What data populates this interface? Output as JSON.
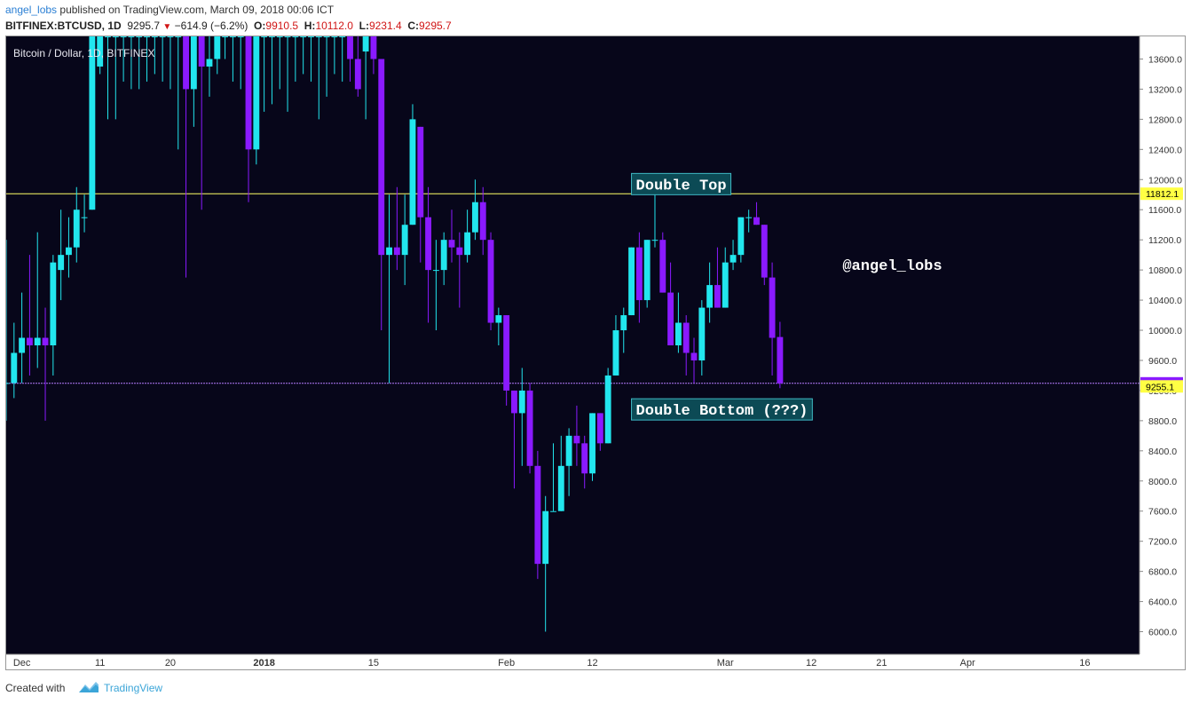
{
  "header": {
    "author": "angel_lobs",
    "published_text": " published on TradingView.com, March 09, 2018 00:06 ICT",
    "symbol": "BITFINEX:BTCUSD, 1D",
    "last_price": "9295.7",
    "change": "−614.9 (−6.2%)",
    "open_label": "O:",
    "open": "9910.5",
    "high_label": "H:",
    "high": "10112.0",
    "low_label": "L:",
    "low": "9231.4",
    "close_label": "C:",
    "close": "9295.7"
  },
  "footer": {
    "created_with": "Created with",
    "brand": "TradingView"
  },
  "colors": {
    "background": "#07061a",
    "bull": "#22e6ee",
    "bear": "#8a1aff",
    "resistance_line": "#ffff66",
    "support_line": "#b57bff",
    "label_bg": "#0c4a55",
    "label_border": "#3fb8c4"
  },
  "chart_data": {
    "type": "candlestick",
    "title": "Bitcoin / Dollar, 1D, BITFINEX",
    "y_ticks": [
      6000,
      6400,
      6800,
      7200,
      7600,
      8000,
      8400,
      8800,
      9200,
      9600,
      10000,
      10400,
      10800,
      11200,
      11600,
      12000,
      12400,
      12800,
      13200,
      13600
    ],
    "y_tick_labels": [
      "6000.0",
      "6400.0",
      "6800.0",
      "7200.0",
      "7600.0",
      "8000.0",
      "8400.0",
      "8800.0",
      "9200.0",
      "9600.0",
      "10000.0",
      "10400.0",
      "10800.0",
      "11200.0",
      "11600.0",
      "12000.0",
      "12400.0",
      "12800.0",
      "13200.0",
      "13600.0"
    ],
    "ylim": [
      5700,
      13900
    ],
    "x_ticks": [
      {
        "label": "Dec",
        "date": "2017-12-01"
      },
      {
        "label": "11",
        "date": "2017-12-11"
      },
      {
        "label": "20",
        "date": "2017-12-20"
      },
      {
        "label": "2018",
        "date": "2018-01-01"
      },
      {
        "label": "15",
        "date": "2018-01-15"
      },
      {
        "label": "Feb",
        "date": "2018-02-01"
      },
      {
        "label": "12",
        "date": "2018-02-12"
      },
      {
        "label": "Mar",
        "date": "2018-03-01"
      },
      {
        "label": "12",
        "date": "2018-03-12"
      },
      {
        "label": "21",
        "date": "2018-03-21"
      },
      {
        "label": "Apr",
        "date": "2018-04-01"
      },
      {
        "label": "16",
        "date": "2018-04-16"
      }
    ],
    "xlim": [
      "2017-11-29",
      "2018-04-23"
    ],
    "price_labels": [
      {
        "value": 11812.1,
        "text": "11812.1",
        "bg": "#ffff44"
      },
      {
        "value": 9295.7,
        "text": "9295.7",
        "bg": "#8a1aff"
      },
      {
        "value": 9255.1,
        "text": "9255.1",
        "bg": "#ffff44"
      }
    ],
    "horizontal_lines": [
      {
        "value": 11812.1,
        "color": "#ffff66"
      },
      {
        "value": 9295.7,
        "color": "#b57bff"
      }
    ],
    "annotations": [
      {
        "text": "Double Top",
        "date": "2018-02-17",
        "value": 11940,
        "boxed": true
      },
      {
        "text": "Double Bottom (???)",
        "date": "2018-02-17",
        "value": 8950,
        "boxed": true
      },
      {
        "text": "@angel_lobs",
        "date": "2018-03-16",
        "value": 10870,
        "boxed": false
      }
    ],
    "candles": [
      {
        "d": "2017-11-29",
        "o": 9300,
        "h": 11200,
        "l": 8800,
        "c": 9300
      },
      {
        "d": "2017-11-30",
        "o": 9300,
        "h": 10100,
        "l": 9100,
        "c": 9700
      },
      {
        "d": "2017-12-01",
        "o": 9700,
        "h": 10500,
        "l": 9300,
        "c": 9900
      },
      {
        "d": "2017-12-02",
        "o": 9900,
        "h": 11000,
        "l": 9400,
        "c": 9800
      },
      {
        "d": "2017-12-03",
        "o": 9800,
        "h": 11300,
        "l": 9500,
        "c": 9900
      },
      {
        "d": "2017-12-04",
        "o": 9900,
        "h": 10300,
        "l": 8800,
        "c": 9800
      },
      {
        "d": "2017-12-05",
        "o": 9800,
        "h": 11000,
        "l": 9400,
        "c": 10900
      },
      {
        "d": "2017-12-06",
        "o": 10800,
        "h": 11600,
        "l": 10400,
        "c": 11000
      },
      {
        "d": "2017-12-07",
        "o": 11000,
        "h": 11500,
        "l": 10700,
        "c": 11100
      },
      {
        "d": "2017-12-08",
        "o": 11100,
        "h": 11900,
        "l": 10900,
        "c": 11600
      },
      {
        "d": "2017-12-09",
        "o": 11500,
        "h": 11800,
        "l": 11300,
        "c": 11500
      },
      {
        "d": "2017-12-10",
        "o": 11600,
        "h": 13900,
        "l": 11600,
        "c": 13900
      },
      {
        "d": "2017-12-11",
        "o": 13500,
        "h": 13900,
        "l": 13400,
        "c": 13900
      },
      {
        "d": "2017-12-12",
        "o": 13900,
        "h": 13900,
        "l": 12800,
        "c": 13900
      },
      {
        "d": "2017-12-13",
        "o": 13900,
        "h": 13900,
        "l": 12800,
        "c": 13900
      },
      {
        "d": "2017-12-14",
        "o": 13900,
        "h": 13900,
        "l": 13300,
        "c": 13900
      },
      {
        "d": "2017-12-15",
        "o": 13900,
        "h": 13900,
        "l": 13200,
        "c": 13900
      },
      {
        "d": "2017-12-16",
        "o": 13900,
        "h": 13900,
        "l": 13200,
        "c": 13900
      },
      {
        "d": "2017-12-17",
        "o": 13900,
        "h": 13900,
        "l": 13300,
        "c": 13900
      },
      {
        "d": "2017-12-18",
        "o": 13900,
        "h": 13900,
        "l": 13400,
        "c": 13900
      },
      {
        "d": "2017-12-19",
        "o": 13900,
        "h": 13900,
        "l": 13300,
        "c": 13900
      },
      {
        "d": "2017-12-20",
        "o": 13900,
        "h": 13900,
        "l": 13200,
        "c": 13900
      },
      {
        "d": "2017-12-21",
        "o": 13900,
        "h": 13900,
        "l": 12400,
        "c": 13900
      },
      {
        "d": "2017-12-22",
        "o": 13900,
        "h": 13900,
        "l": 10700,
        "c": 13200
      },
      {
        "d": "2017-12-23",
        "o": 13200,
        "h": 13900,
        "l": 12700,
        "c": 13900
      },
      {
        "d": "2017-12-24",
        "o": 13900,
        "h": 13900,
        "l": 11600,
        "c": 13500
      },
      {
        "d": "2017-12-25",
        "o": 13500,
        "h": 13900,
        "l": 13100,
        "c": 13600
      },
      {
        "d": "2017-12-26",
        "o": 13600,
        "h": 13900,
        "l": 13400,
        "c": 13900
      },
      {
        "d": "2017-12-27",
        "o": 13900,
        "h": 13900,
        "l": 13600,
        "c": 13900
      },
      {
        "d": "2017-12-28",
        "o": 13900,
        "h": 13900,
        "l": 13300,
        "c": 13900
      },
      {
        "d": "2017-12-29",
        "o": 13900,
        "h": 13900,
        "l": 13200,
        "c": 13900
      },
      {
        "d": "2017-12-30",
        "o": 13900,
        "h": 13900,
        "l": 11700,
        "c": 12400
      },
      {
        "d": "2017-12-31",
        "o": 12400,
        "h": 13900,
        "l": 12200,
        "c": 13900
      },
      {
        "d": "2018-01-01",
        "o": 13900,
        "h": 13900,
        "l": 12900,
        "c": 13900
      },
      {
        "d": "2018-01-02",
        "o": 13900,
        "h": 13900,
        "l": 13000,
        "c": 13900
      },
      {
        "d": "2018-01-03",
        "o": 13900,
        "h": 13900,
        "l": 13200,
        "c": 13900
      },
      {
        "d": "2018-01-04",
        "o": 13900,
        "h": 13900,
        "l": 12900,
        "c": 13900
      },
      {
        "d": "2018-01-05",
        "o": 13900,
        "h": 13900,
        "l": 13300,
        "c": 13900
      },
      {
        "d": "2018-01-06",
        "o": 13900,
        "h": 13900,
        "l": 13400,
        "c": 13900
      },
      {
        "d": "2018-01-07",
        "o": 13900,
        "h": 13900,
        "l": 13300,
        "c": 13900
      },
      {
        "d": "2018-01-08",
        "o": 13900,
        "h": 13900,
        "l": 12800,
        "c": 13900
      },
      {
        "d": "2018-01-09",
        "o": 13900,
        "h": 13900,
        "l": 13100,
        "c": 13900
      },
      {
        "d": "2018-01-10",
        "o": 13900,
        "h": 13900,
        "l": 13400,
        "c": 13900
      },
      {
        "d": "2018-01-11",
        "o": 13900,
        "h": 13900,
        "l": 13300,
        "c": 13900
      },
      {
        "d": "2018-01-12",
        "o": 13900,
        "h": 13900,
        "l": 13300,
        "c": 13600
      },
      {
        "d": "2018-01-13",
        "o": 13600,
        "h": 13900,
        "l": 13100,
        "c": 13200
      },
      {
        "d": "2018-01-14",
        "o": 13700,
        "h": 13900,
        "l": 12800,
        "c": 13900
      },
      {
        "d": "2018-01-15",
        "o": 13900,
        "h": 13900,
        "l": 13400,
        "c": 13600
      },
      {
        "d": "2018-01-16",
        "o": 13600,
        "h": 13600,
        "l": 10000,
        "c": 11000
      },
      {
        "d": "2018-01-17",
        "o": 11000,
        "h": 11800,
        "l": 9300,
        "c": 11100
      },
      {
        "d": "2018-01-18",
        "o": 11100,
        "h": 11900,
        "l": 10800,
        "c": 11000
      },
      {
        "d": "2018-01-19",
        "o": 11000,
        "h": 11800,
        "l": 10600,
        "c": 11400
      },
      {
        "d": "2018-01-20",
        "o": 11400,
        "h": 13000,
        "l": 11400,
        "c": 12800
      },
      {
        "d": "2018-01-21",
        "o": 12700,
        "h": 12700,
        "l": 10900,
        "c": 11500
      },
      {
        "d": "2018-01-22",
        "o": 11500,
        "h": 11900,
        "l": 10100,
        "c": 10800
      },
      {
        "d": "2018-01-23",
        "o": 10800,
        "h": 11200,
        "l": 10000,
        "c": 10800
      },
      {
        "d": "2018-01-24",
        "o": 10800,
        "h": 11300,
        "l": 10600,
        "c": 11200
      },
      {
        "d": "2018-01-25",
        "o": 11200,
        "h": 11600,
        "l": 10900,
        "c": 11100
      },
      {
        "d": "2018-01-26",
        "o": 11100,
        "h": 11300,
        "l": 10300,
        "c": 11000
      },
      {
        "d": "2018-01-27",
        "o": 11000,
        "h": 11600,
        "l": 10900,
        "c": 11300
      },
      {
        "d": "2018-01-28",
        "o": 11300,
        "h": 12000,
        "l": 11200,
        "c": 11700
      },
      {
        "d": "2018-01-29",
        "o": 11700,
        "h": 11900,
        "l": 11000,
        "c": 11200
      },
      {
        "d": "2018-01-30",
        "o": 11200,
        "h": 11300,
        "l": 10000,
        "c": 10100
      },
      {
        "d": "2018-01-31",
        "o": 10100,
        "h": 10300,
        "l": 9800,
        "c": 10200
      },
      {
        "d": "2018-02-01",
        "o": 10200,
        "h": 10200,
        "l": 9000,
        "c": 9200
      },
      {
        "d": "2018-02-02",
        "o": 9200,
        "h": 9200,
        "l": 7900,
        "c": 8900
      },
      {
        "d": "2018-02-03",
        "o": 8900,
        "h": 9500,
        "l": 8200,
        "c": 9200
      },
      {
        "d": "2018-02-04",
        "o": 9200,
        "h": 9300,
        "l": 8100,
        "c": 8200
      },
      {
        "d": "2018-02-05",
        "o": 8200,
        "h": 8400,
        "l": 6700,
        "c": 6900
      },
      {
        "d": "2018-02-06",
        "o": 6900,
        "h": 7800,
        "l": 6000,
        "c": 7600
      },
      {
        "d": "2018-02-07",
        "o": 7600,
        "h": 8500,
        "l": 7600,
        "c": 7600
      },
      {
        "d": "2018-02-08",
        "o": 7600,
        "h": 8600,
        "l": 7600,
        "c": 8200
      },
      {
        "d": "2018-02-09",
        "o": 8200,
        "h": 8700,
        "l": 7800,
        "c": 8600
      },
      {
        "d": "2018-02-10",
        "o": 8600,
        "h": 9000,
        "l": 8200,
        "c": 8500
      },
      {
        "d": "2018-02-11",
        "o": 8500,
        "h": 8600,
        "l": 7900,
        "c": 8100
      },
      {
        "d": "2018-02-12",
        "o": 8100,
        "h": 8900,
        "l": 8000,
        "c": 8900
      },
      {
        "d": "2018-02-13",
        "o": 8900,
        "h": 8900,
        "l": 8400,
        "c": 8500
      },
      {
        "d": "2018-02-14",
        "o": 8500,
        "h": 9500,
        "l": 8500,
        "c": 9400
      },
      {
        "d": "2018-02-15",
        "o": 9400,
        "h": 10200,
        "l": 9400,
        "c": 10000
      },
      {
        "d": "2018-02-16",
        "o": 10000,
        "h": 10300,
        "l": 9700,
        "c": 10200
      },
      {
        "d": "2018-02-17",
        "o": 10200,
        "h": 11100,
        "l": 10200,
        "c": 11100
      },
      {
        "d": "2018-02-18",
        "o": 11100,
        "h": 11300,
        "l": 10100,
        "c": 10400
      },
      {
        "d": "2018-02-19",
        "o": 10400,
        "h": 11200,
        "l": 10300,
        "c": 11200
      },
      {
        "d": "2018-02-20",
        "o": 11200,
        "h": 11800,
        "l": 11100,
        "c": 11200
      },
      {
        "d": "2018-02-21",
        "o": 11200,
        "h": 11300,
        "l": 10500,
        "c": 10500
      },
      {
        "d": "2018-02-22",
        "o": 10500,
        "h": 10900,
        "l": 9800,
        "c": 9800
      },
      {
        "d": "2018-02-23",
        "o": 9800,
        "h": 10500,
        "l": 9700,
        "c": 10100
      },
      {
        "d": "2018-02-24",
        "o": 10100,
        "h": 10200,
        "l": 9400,
        "c": 9700
      },
      {
        "d": "2018-02-25",
        "o": 9700,
        "h": 9900,
        "l": 9300,
        "c": 9600
      },
      {
        "d": "2018-02-26",
        "o": 9600,
        "h": 10400,
        "l": 9400,
        "c": 10300
      },
      {
        "d": "2018-02-27",
        "o": 10300,
        "h": 10900,
        "l": 10100,
        "c": 10600
      },
      {
        "d": "2018-02-28",
        "o": 10600,
        "h": 11100,
        "l": 10300,
        "c": 10300
      },
      {
        "d": "2018-03-01",
        "o": 10300,
        "h": 11100,
        "l": 10300,
        "c": 10900
      },
      {
        "d": "2018-03-02",
        "o": 10900,
        "h": 11200,
        "l": 10800,
        "c": 11000
      },
      {
        "d": "2018-03-03",
        "o": 11000,
        "h": 11500,
        "l": 10900,
        "c": 11500
      },
      {
        "d": "2018-03-04",
        "o": 11500,
        "h": 11600,
        "l": 11300,
        "c": 11500
      },
      {
        "d": "2018-03-05",
        "o": 11500,
        "h": 11700,
        "l": 11400,
        "c": 11400
      },
      {
        "d": "2018-03-06",
        "o": 11400,
        "h": 11400,
        "l": 10600,
        "c": 10700
      },
      {
        "d": "2018-03-07",
        "o": 10700,
        "h": 10900,
        "l": 9400,
        "c": 9900
      },
      {
        "d": "2018-03-08",
        "o": 9910.5,
        "h": 10112,
        "l": 9231.4,
        "c": 9295.7
      }
    ]
  }
}
